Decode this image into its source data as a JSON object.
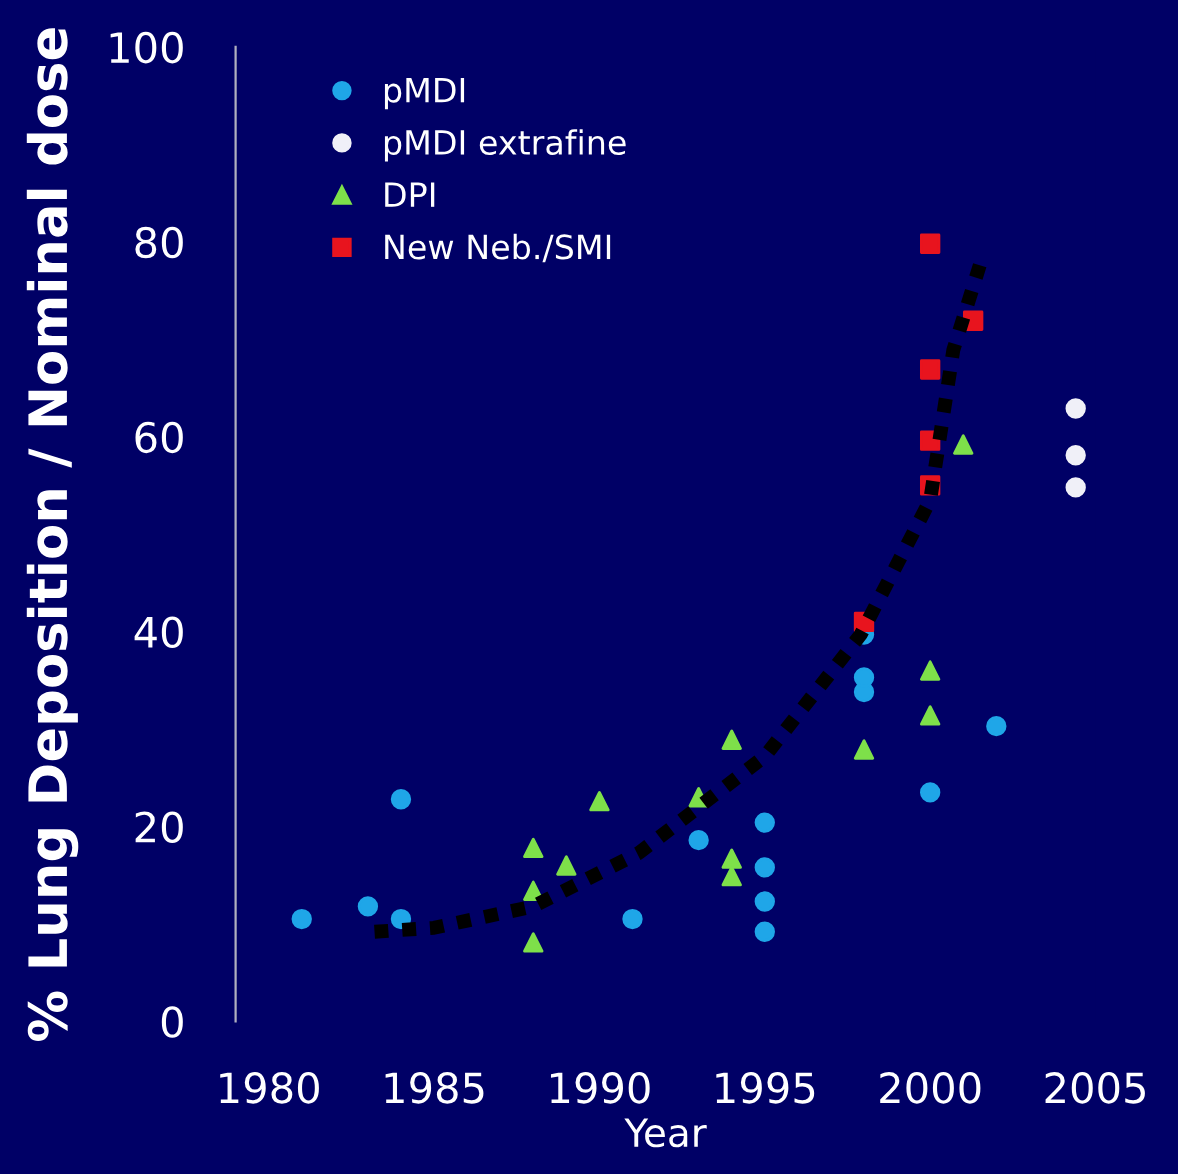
{
  "chart_data": {
    "type": "scatter",
    "xlabel": "Year",
    "ylabel": "% Lung Deposition / Nominal dose",
    "xlim": [
      1979,
      2005
    ],
    "ylim": [
      0,
      100
    ],
    "xticks": [
      1980,
      1985,
      1990,
      1995,
      2000,
      2005
    ],
    "yticks": [
      0,
      20,
      40,
      60,
      80,
      100
    ],
    "grid": false,
    "legend": "top left",
    "series": [
      {
        "name": "pMDI",
        "color": "#1fa6e8",
        "marker": "circle",
        "x": [
          1981,
          1983,
          1984,
          1984,
          1991,
          1993,
          1995,
          1995,
          1995,
          1995,
          1998,
          1998,
          1998,
          2000,
          2002
        ],
        "values": [
          10.5,
          11.8,
          10.5,
          22.8,
          10.5,
          18.6,
          20.4,
          15.8,
          12.3,
          9.2,
          33.8,
          35.3,
          39.7,
          23.5,
          30.3
        ]
      },
      {
        "name": "pMDI extrafine",
        "color": "#f0f0f8",
        "marker": "circle",
        "x": [
          2004.4,
          2004.4,
          2004.4
        ],
        "values": [
          62.9,
          58.1,
          54.8
        ]
      },
      {
        "name": "DPI",
        "color": "#7ee04a",
        "marker": "triangle",
        "x": [
          1988,
          1988,
          1988,
          1989,
          1990,
          1993,
          1994,
          1994,
          1994,
          1998,
          2000,
          2000,
          2001
        ],
        "values": [
          17.8,
          13.4,
          8.1,
          16.0,
          22.6,
          23.0,
          28.9,
          16.7,
          14.9,
          27.9,
          36.0,
          31.4,
          59.2
        ]
      },
      {
        "name": "New Neb./SMI",
        "color": "#e8141e",
        "marker": "square",
        "x": [
          1998,
          2000,
          2001.3,
          2000,
          2000,
          2000
        ],
        "values": [
          41.0,
          79.8,
          71.9,
          66.9,
          59.6,
          55.0
        ]
      },
      {
        "type": "line",
        "color": "#000000",
        "line_style": "dotted",
        "marker": "none",
        "x": [
          1983.2,
          1985,
          1988,
          1991.2,
          1995,
          1997.9,
          2000,
          2000.7,
          2001.5
        ],
        "values": [
          9.2,
          9.6,
          11.8,
          17.3,
          27.2,
          39.7,
          53.5,
          68.9,
          77.6
        ]
      }
    ]
  }
}
